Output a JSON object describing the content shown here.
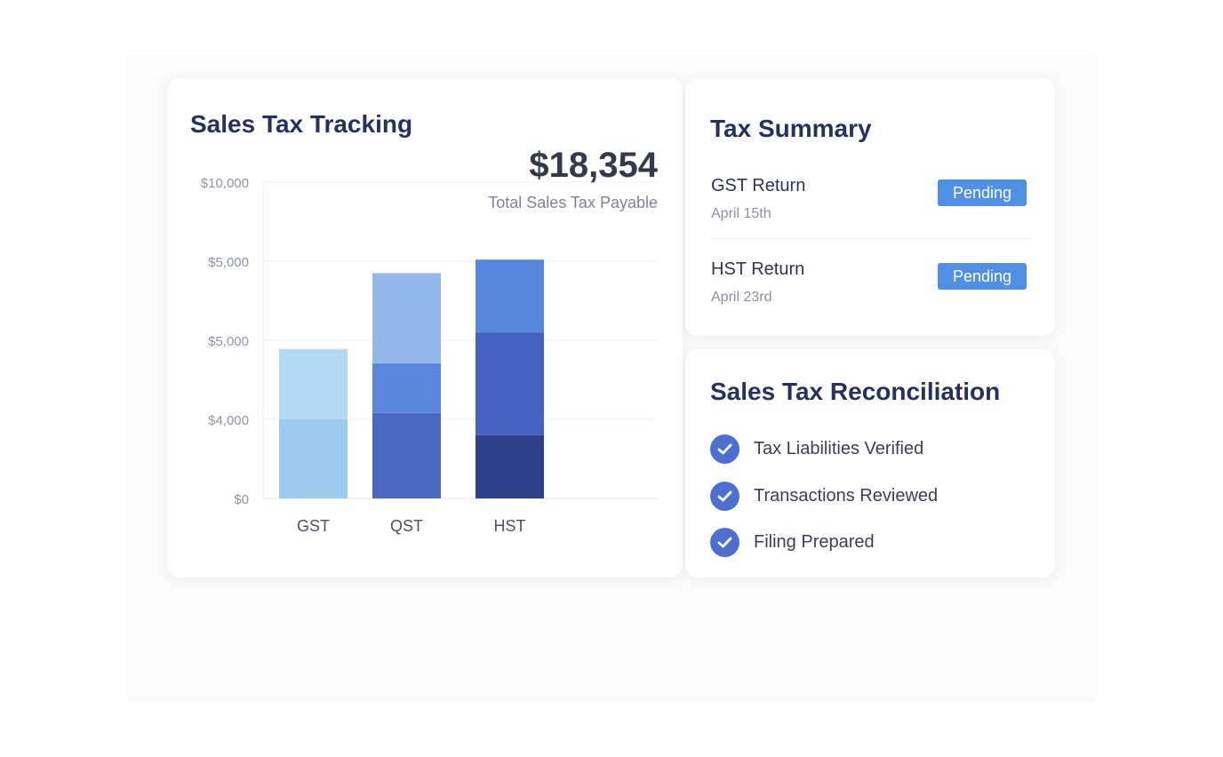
{
  "colors": {
    "accent": "#4f8fe6",
    "heading": "#27325c",
    "check": "#4f6fd0",
    "gst_segments": [
      "#9ccbee",
      "#b5daf3"
    ],
    "qst_segments": [
      "#4a68bf",
      "#5a87dd",
      "#95b8ea"
    ],
    "hst_segments": [
      "#2e3f8c",
      "#4461c0",
      "#5588dc"
    ]
  },
  "tracking": {
    "title": "Sales Tax Tracking",
    "total_value": "$18,354",
    "total_label": "Total Sales Tax Payable"
  },
  "chart_data": {
    "type": "bar",
    "stacked": true,
    "categories": [
      "GST",
      "QST",
      "HST"
    ],
    "y_tick_labels": [
      "$0",
      "$4,000",
      "$5,000",
      "$5,000",
      "$10,000"
    ],
    "grid": true,
    "note": "Y-axis tick labels are non-linear as printed; values below are in tick-row units (0 = $0, 4 = $10,000)",
    "bars": [
      {
        "category": "GST",
        "segments": [
          1.0,
          0.89
        ]
      },
      {
        "category": "QST",
        "segments": [
          1.08,
          0.63,
          1.14
        ]
      },
      {
        "category": "HST",
        "segments": [
          0.8,
          1.3,
          0.92
        ]
      }
    ]
  },
  "summary": {
    "title": "Tax Summary",
    "items": [
      {
        "name": "GST Return",
        "date": "April  15th",
        "status": "Pending"
      },
      {
        "name": "HST Return",
        "date": "April  23rd",
        "status": "Pending"
      }
    ]
  },
  "reconciliation": {
    "title": "Sales Tax Reconciliation",
    "items": [
      {
        "label": "Tax Liabilities Verified",
        "icon": "check-circle-icon"
      },
      {
        "label": "Transactions Reviewed",
        "icon": "check-circle-icon"
      },
      {
        "label": "Filing Prepared",
        "icon": "check-circle-icon"
      }
    ]
  }
}
